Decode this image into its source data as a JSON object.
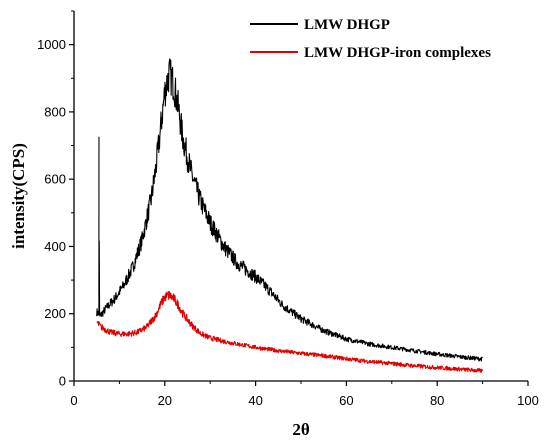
{
  "chart_data": {
    "type": "line",
    "title": "",
    "xlabel": "2θ",
    "ylabel": "intensity(CPS)",
    "xlim": [
      0,
      100
    ],
    "ylim": [
      0,
      1100
    ],
    "xticks": [
      0,
      20,
      40,
      60,
      80,
      100
    ],
    "yticks": [
      0,
      200,
      400,
      600,
      800,
      1000
    ],
    "grid": false,
    "legend_position": "top-right",
    "series": [
      {
        "name": "LMW DHGP",
        "color": "#000000",
        "x": [
          5,
          5.5,
          5.5,
          5.6,
          7,
          9,
          11,
          13,
          15,
          17,
          18,
          19,
          20,
          21,
          22,
          23,
          24,
          26,
          28,
          30,
          33,
          36,
          40,
          43,
          46,
          50,
          55,
          60,
          65,
          70,
          75,
          80,
          85,
          90
        ],
        "y": [
          205,
          200,
          725,
          190,
          215,
          245,
          285,
          340,
          420,
          540,
          630,
          740,
          860,
          915,
          880,
          810,
          720,
          610,
          530,
          470,
          400,
          350,
          310,
          270,
          225,
          185,
          150,
          125,
          110,
          100,
          90,
          80,
          72,
          65
        ]
      },
      {
        "name": "LMW DHGP-iron complexes",
        "color": "#e00000",
        "x": [
          5,
          6,
          8,
          10,
          12,
          14,
          16,
          18,
          19,
          20,
          21,
          22,
          23,
          24,
          26,
          28,
          30,
          33,
          36,
          40,
          45,
          50,
          55,
          60,
          65,
          70,
          75,
          80,
          85,
          90
        ],
        "y": [
          175,
          160,
          145,
          140,
          140,
          145,
          160,
          195,
          225,
          250,
          255,
          245,
          225,
          200,
          165,
          140,
          128,
          118,
          110,
          100,
          90,
          82,
          75,
          66,
          58,
          52,
          45,
          40,
          35,
          30
        ]
      }
    ]
  }
}
